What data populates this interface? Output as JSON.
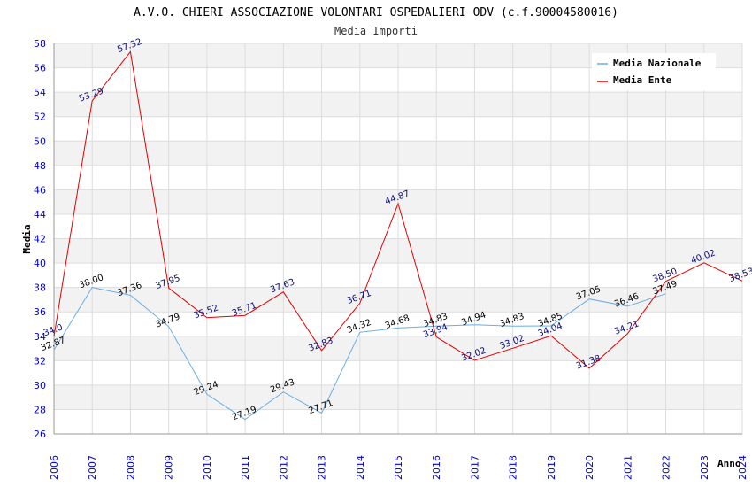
{
  "chart_data": {
    "type": "line",
    "title": "A.V.O. CHIERI ASSOCIAZIONE VOLONTARI OSPEDALIERI ODV (c.f.90004580016)",
    "subtitle": "Media Importi",
    "xlabel": "Anno",
    "ylabel": "Media",
    "x": [
      "2006",
      "2007",
      "2008",
      "2009",
      "2010",
      "2011",
      "2012",
      "2013",
      "2014",
      "2015",
      "2016",
      "2017",
      "2018",
      "2019",
      "2020",
      "2021",
      "2022",
      "2023",
      "2024"
    ],
    "yticks": [
      "26",
      "28",
      "30",
      "32",
      "34",
      "36",
      "38",
      "40",
      "42",
      "44",
      "46",
      "48",
      "50",
      "52",
      "54",
      "56",
      "58"
    ],
    "ylim": [
      26,
      58
    ],
    "grid": true,
    "legend_position": "top-right",
    "series": [
      {
        "name": "Media Nazionale",
        "color": "#6aaee6",
        "label_color": "#000000",
        "values": [
          32.87,
          38.0,
          37.36,
          34.79,
          29.24,
          27.19,
          29.43,
          27.71,
          34.32,
          34.68,
          34.83,
          34.94,
          34.83,
          34.85,
          37.05,
          36.46,
          37.49,
          null,
          null
        ],
        "labels": [
          "32.87",
          "38.00",
          "37.36",
          "34.79",
          "29.24",
          "27.19",
          "29.43",
          "27.71",
          "34.32",
          "34.68",
          "34.83",
          "34.94",
          "34.83",
          "34.85",
          "37.05",
          "36.46",
          "37.49",
          "",
          ""
        ]
      },
      {
        "name": "Media Ente",
        "color": "#e00000",
        "label_color": "#0a0a7a",
        "values": [
          34.0,
          53.29,
          57.32,
          37.95,
          35.52,
          35.71,
          37.63,
          32.83,
          36.71,
          44.87,
          33.94,
          32.02,
          33.02,
          34.04,
          31.38,
          34.21,
          38.5,
          40.02,
          38.53
        ],
        "labels": [
          "34.0",
          "53.29",
          "57.32",
          "37.95",
          "35.52",
          "35.71",
          "37.63",
          "32.83",
          "36.71",
          "44.87",
          "33.94",
          "32.02",
          "33.02",
          "34.04",
          "31.38",
          "34.21",
          "38.50",
          "40.02",
          "38.53"
        ]
      }
    ]
  }
}
